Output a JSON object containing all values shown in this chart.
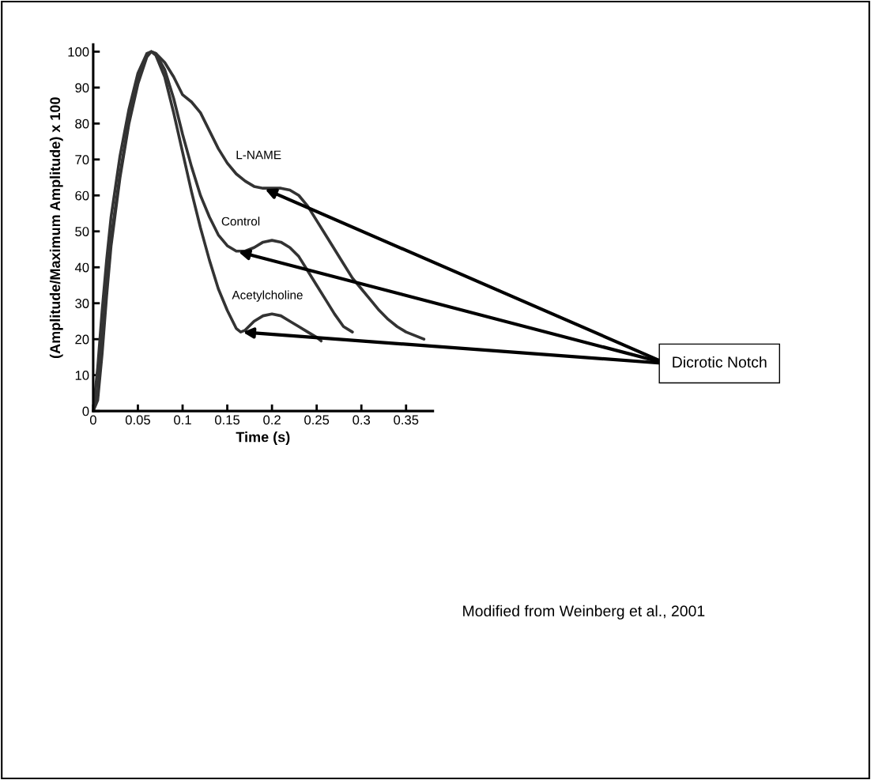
{
  "chart_data": {
    "type": "line",
    "xlabel": "Time (s)",
    "ylabel": "(Amplitude/Maximum Amplitude) x 100",
    "xlim": [
      0,
      0.38
    ],
    "ylim": [
      0,
      102
    ],
    "xticks": [
      0,
      0.05,
      0.1,
      0.15,
      0.2,
      0.25,
      0.3,
      0.35
    ],
    "yticks": [
      0,
      10,
      20,
      30,
      40,
      50,
      60,
      70,
      80,
      90,
      100
    ],
    "series": [
      {
        "name": "L-NAME",
        "color": "#333333",
        "x": [
          0,
          0.005,
          0.01,
          0.015,
          0.02,
          0.03,
          0.04,
          0.05,
          0.06,
          0.065,
          0.07,
          0.08,
          0.09,
          0.1,
          0.11,
          0.12,
          0.13,
          0.14,
          0.15,
          0.16,
          0.17,
          0.18,
          0.19,
          0.2,
          0.21,
          0.22,
          0.23,
          0.24,
          0.25,
          0.26,
          0.27,
          0.28,
          0.29,
          0.3,
          0.31,
          0.32,
          0.33,
          0.34,
          0.35,
          0.36,
          0.37
        ],
        "values": [
          0,
          3,
          16,
          32,
          46,
          65,
          80,
          91,
          98.5,
          100,
          99.5,
          97,
          93,
          88,
          86,
          83,
          78,
          73,
          69,
          66,
          64,
          62.5,
          62,
          62,
          62,
          61.5,
          60,
          57,
          53,
          49,
          45,
          41,
          37,
          34,
          31,
          28,
          25.5,
          23.5,
          22,
          21,
          20
        ]
      },
      {
        "name": "Control",
        "color": "#333333",
        "x": [
          0,
          0.005,
          0.01,
          0.015,
          0.02,
          0.03,
          0.04,
          0.05,
          0.06,
          0.065,
          0.07,
          0.08,
          0.09,
          0.1,
          0.11,
          0.12,
          0.13,
          0.14,
          0.15,
          0.16,
          0.17,
          0.18,
          0.19,
          0.2,
          0.21,
          0.22,
          0.23,
          0.24,
          0.25,
          0.26,
          0.27,
          0.28,
          0.29
        ],
        "values": [
          0,
          5,
          20,
          35,
          48,
          66,
          81,
          92,
          99,
          100,
          99.5,
          95,
          87,
          77,
          68,
          60,
          54,
          49,
          46,
          44.5,
          44.5,
          45.5,
          47,
          47.5,
          47,
          45.5,
          43,
          39,
          35,
          31,
          27,
          23.5,
          22
        ]
      },
      {
        "name": "Acetylcholine",
        "color": "#333333",
        "x": [
          0,
          0.005,
          0.01,
          0.015,
          0.02,
          0.03,
          0.04,
          0.05,
          0.06,
          0.065,
          0.07,
          0.08,
          0.09,
          0.1,
          0.11,
          0.12,
          0.13,
          0.14,
          0.15,
          0.16,
          0.165,
          0.17,
          0.18,
          0.19,
          0.2,
          0.21,
          0.22,
          0.23,
          0.24,
          0.25,
          0.255
        ],
        "values": [
          0,
          12,
          28,
          42,
          54,
          71,
          84,
          94,
          99.5,
          100,
          99,
          93,
          83,
          72,
          61,
          51,
          42,
          34,
          28,
          23,
          22,
          22.5,
          25,
          26.5,
          27,
          26.5,
          25,
          23.5,
          22,
          20.5,
          19.5
        ]
      }
    ],
    "annotations": [
      "Dicrotic Notch",
      "Modified from Weinberg et al., 2001"
    ]
  }
}
